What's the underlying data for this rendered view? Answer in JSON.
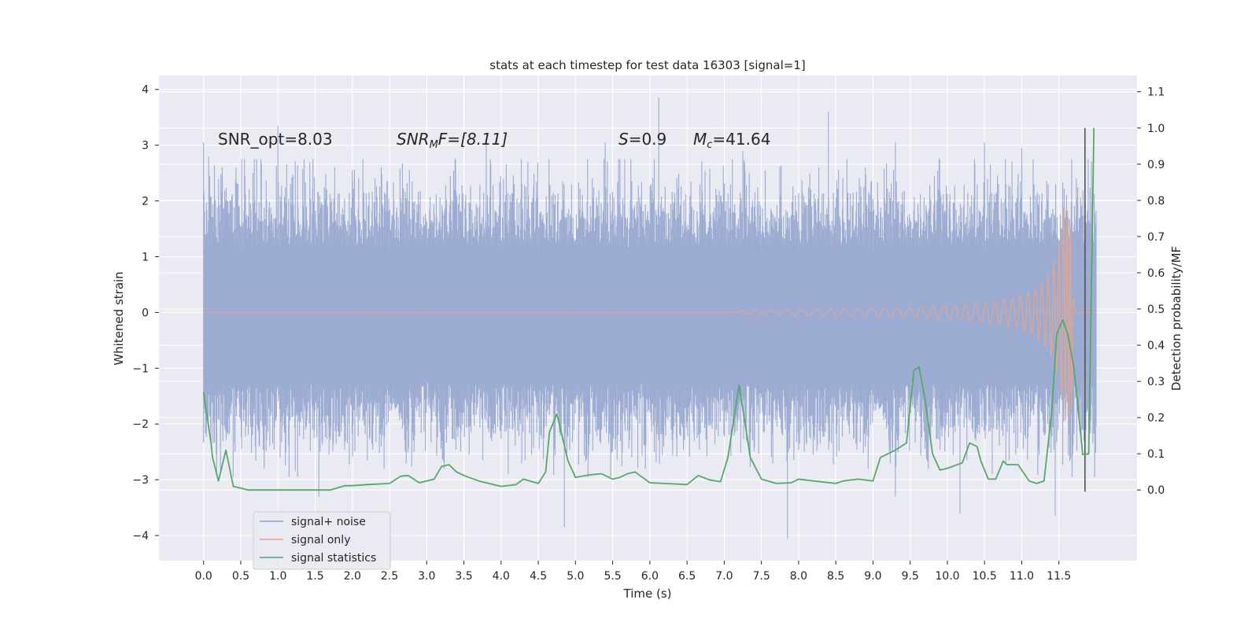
{
  "chart_data": {
    "type": "line",
    "title": "stats at each timestep for test data 16303 [signal=1]",
    "xlabel": "Time (s)",
    "ylabel_left": "Whitened strain",
    "ylabel_right": "Detection probability/MF",
    "xlim": [
      -0.6,
      12.55
    ],
    "ylim_left": [
      -4.45,
      4.25
    ],
    "ylim_right": [
      -0.195,
      1.145
    ],
    "x_ticks": [
      "0.0",
      "0.5",
      "1.0",
      "1.5",
      "2.0",
      "2.5",
      "3.0",
      "3.5",
      "4.0",
      "4.5",
      "5.0",
      "5.5",
      "6.0",
      "6.5",
      "7.0",
      "7.5",
      "8.0",
      "8.5",
      "9.0",
      "9.5",
      "10.0",
      "10.5",
      "11.0",
      "11.5"
    ],
    "y_ticks_left": [
      "−4",
      "−3",
      "−2",
      "−1",
      "0",
      "1",
      "2",
      "3",
      "4"
    ],
    "y_ticks_right": [
      "0.0",
      "0.1",
      "0.2",
      "0.3",
      "0.4",
      "0.5",
      "0.6",
      "0.7",
      "0.8",
      "0.9",
      "1.0",
      "1.1"
    ],
    "grid": true,
    "legend_position": "lower-left",
    "annotations": {
      "snr_opt": "SNR_opt=8.03",
      "snr_mf_label": "SNR",
      "snr_mf_sub": "M",
      "snr_mf_value": "F=[8.11]",
      "s_label": "S",
      "s_value": "=0.9",
      "mc_label": "M",
      "mc_sub": "c",
      "mc_value": "=41.64"
    },
    "series": [
      {
        "name": "signal+ noise",
        "color": "#8da0cb",
        "envelope": {
          "x_start": 0.0,
          "x_end": 12.0,
          "typical_abs": 1.6,
          "max": 3.85,
          "min": -4.05
        },
        "spikes": [
          {
            "x": 0.0,
            "y": 3.05
          },
          {
            "x": 0.07,
            "y": 2.8
          },
          {
            "x": 0.25,
            "y": 2.6
          },
          {
            "x": 0.55,
            "y": 2.75
          },
          {
            "x": 1.0,
            "y": 3.35
          },
          {
            "x": 1.47,
            "y": 2.75
          },
          {
            "x": 2.0,
            "y": 2.55
          },
          {
            "x": 3.8,
            "y": 3.05
          },
          {
            "x": 5.4,
            "y": 3.05
          },
          {
            "x": 6.12,
            "y": 3.85
          },
          {
            "x": 7.25,
            "y": 2.9
          },
          {
            "x": 8.4,
            "y": 3.6
          },
          {
            "x": 9.3,
            "y": 3.05
          },
          {
            "x": 10.5,
            "y": 3.05
          },
          {
            "x": 11.0,
            "y": 2.95
          },
          {
            "x": 0.1,
            "y": -2.3
          },
          {
            "x": 1.55,
            "y": -3.3
          },
          {
            "x": 2.2,
            "y": -2.65
          },
          {
            "x": 4.85,
            "y": -3.85
          },
          {
            "x": 7.85,
            "y": -4.05
          },
          {
            "x": 9.3,
            "y": -3.3
          },
          {
            "x": 10.17,
            "y": -3.6
          },
          {
            "x": 11.45,
            "y": -3.65
          }
        ]
      },
      {
        "name": "signal only",
        "color": "#e5a58e",
        "chirp": {
          "flat_until": 7.2,
          "peak_x": 11.67,
          "peak_y": 1.95,
          "min_y": -1.75,
          "end_x": 12.0
        }
      },
      {
        "name": "signal statistics",
        "color": "#55a868",
        "axis": "right",
        "x": [
          0.0,
          0.1,
          0.12,
          0.2,
          0.3,
          0.4,
          0.5,
          0.6,
          0.7,
          0.8,
          1.0,
          1.3,
          1.7,
          1.9,
          2.0,
          2.2,
          2.5,
          2.65,
          2.75,
          2.9,
          3.1,
          3.2,
          3.3,
          3.4,
          3.5,
          3.7,
          4.0,
          4.2,
          4.3,
          4.5,
          4.6,
          4.65,
          4.75,
          4.9,
          5.0,
          5.2,
          5.35,
          5.5,
          5.6,
          5.7,
          5.8,
          6.0,
          6.2,
          6.5,
          6.65,
          6.8,
          6.95,
          7.05,
          7.2,
          7.35,
          7.5,
          7.7,
          7.9,
          8.0,
          8.2,
          8.5,
          8.6,
          8.8,
          9.0,
          9.1,
          9.3,
          9.45,
          9.55,
          9.62,
          9.7,
          9.8,
          9.9,
          10.0,
          10.2,
          10.3,
          10.4,
          10.45,
          10.55,
          10.65,
          10.75,
          10.8,
          10.95,
          11.1,
          11.2,
          11.3,
          11.4,
          11.47,
          11.55,
          11.62,
          11.7,
          11.82,
          11.9,
          11.97
        ],
        "values": [
          0.27,
          0.13,
          0.09,
          0.025,
          0.11,
          0.01,
          0.005,
          0.0,
          0.0,
          0.0,
          0.0,
          0.0,
          0.0,
          0.012,
          0.012,
          0.015,
          0.018,
          0.038,
          0.04,
          0.02,
          0.03,
          0.065,
          0.07,
          0.05,
          0.04,
          0.025,
          0.01,
          0.015,
          0.03,
          0.018,
          0.05,
          0.16,
          0.21,
          0.08,
          0.035,
          0.042,
          0.045,
          0.03,
          0.035,
          0.045,
          0.05,
          0.02,
          0.018,
          0.015,
          0.04,
          0.028,
          0.023,
          0.09,
          0.29,
          0.09,
          0.03,
          0.018,
          0.02,
          0.03,
          0.025,
          0.018,
          0.025,
          0.03,
          0.025,
          0.09,
          0.11,
          0.13,
          0.33,
          0.34,
          0.25,
          0.1,
          0.055,
          0.06,
          0.075,
          0.13,
          0.12,
          0.08,
          0.03,
          0.03,
          0.08,
          0.07,
          0.07,
          0.025,
          0.018,
          0.025,
          0.21,
          0.43,
          0.47,
          0.43,
          0.34,
          0.098,
          0.1,
          1.0
        ]
      }
    ],
    "vertical_marker": {
      "x": 11.85,
      "y_from": 0.0,
      "y_to": 1.0,
      "color": "#555555"
    }
  }
}
